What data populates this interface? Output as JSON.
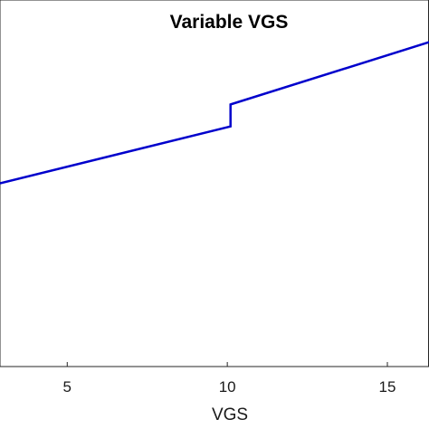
{
  "chart_data": {
    "type": "line",
    "title": "Variable VGS",
    "xlabel": "VGS",
    "ylabel": "",
    "xlim": [
      2.9,
      16.3
    ],
    "ylim": [
      0,
      10
    ],
    "x_ticks": [
      5,
      10,
      15
    ],
    "x_tick_labels": [
      "5",
      "10",
      "15"
    ],
    "grid": false,
    "series": [
      {
        "color": "#0000cc",
        "x": [
          2.9,
          10.1,
          10.1,
          16.3
        ],
        "y": [
          5.0,
          6.55,
          7.15,
          8.85
        ]
      }
    ]
  }
}
